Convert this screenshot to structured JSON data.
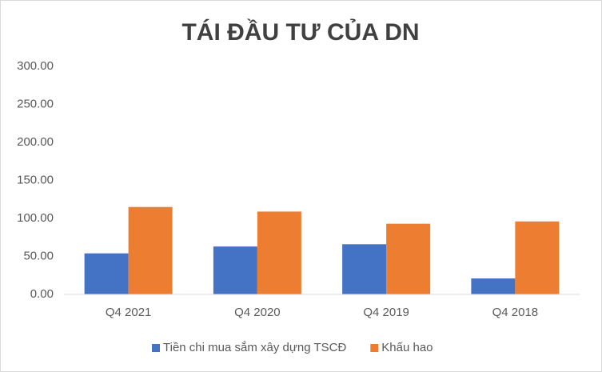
{
  "chart_data": {
    "type": "bar",
    "title": "TÁI ĐẦU TƯ CỦA DN",
    "categories": [
      "Q4 2021",
      "Q4 2020",
      "Q4 2019",
      "Q4 2018"
    ],
    "series": [
      {
        "name": "Tiền chi mua sắm xây dựng TSCĐ",
        "color": "#4472c4",
        "values": [
          54,
          63,
          66,
          21
        ]
      },
      {
        "name": "Khấu hao",
        "color": "#ed7d31",
        "values": [
          115,
          109,
          93,
          96
        ]
      }
    ],
    "ylim": [
      0,
      300
    ],
    "yticks": [
      {
        "value": 0,
        "label": "0.00"
      },
      {
        "value": 50,
        "label": "50.00"
      },
      {
        "value": 100,
        "label": "100.00"
      },
      {
        "value": 150,
        "label": "150.00"
      },
      {
        "value": 200,
        "label": "200.00"
      },
      {
        "value": 250,
        "label": "250.00"
      },
      {
        "value": 300,
        "label": "300.00"
      }
    ],
    "grid": false,
    "legend": "bottom"
  }
}
